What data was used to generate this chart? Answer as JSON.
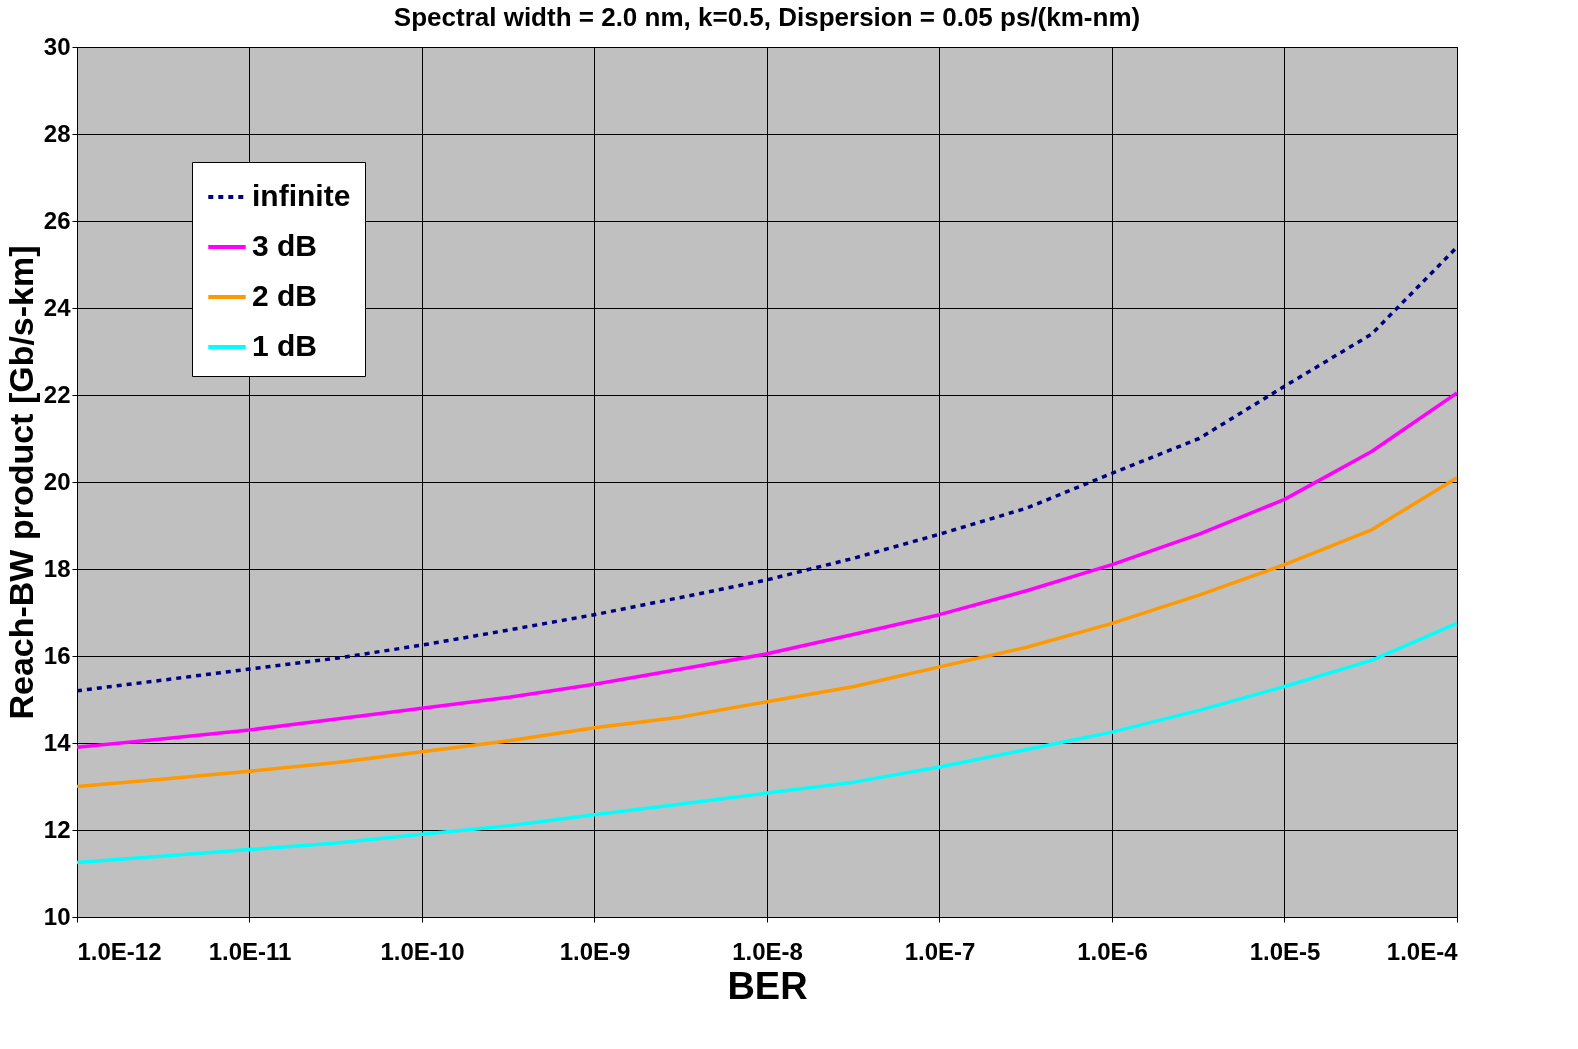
{
  "chart_data": {
    "type": "line",
    "title": "Spectral width = 2.0 nm, k=0.5, Dispersion = 0.05 ps/(km-nm)",
    "xlabel": "BER",
    "ylabel": "Reach-BW product  [Gb/s-km]",
    "x": [
      1e-12,
      3.2e-12,
      1e-11,
      3.2e-11,
      1e-10,
      3.2e-10,
      1e-09,
      3.2e-09,
      1e-08,
      3.2e-08,
      1e-07,
      3.2e-07,
      1e-06,
      3.2e-06,
      1e-05,
      3.2e-05,
      0.0001
    ],
    "series": [
      {
        "name": "infinite",
        "color": "#000080",
        "line_style": "dotted",
        "values": [
          15.2,
          15.45,
          15.7,
          15.95,
          16.25,
          16.6,
          16.95,
          17.35,
          17.75,
          18.25,
          18.8,
          19.4,
          20.2,
          21.0,
          22.2,
          23.4,
          25.4
        ]
      },
      {
        "name": "3 dB",
        "color": "#ff00ff",
        "line_style": "solid",
        "values": [
          13.9,
          14.1,
          14.3,
          14.55,
          14.8,
          15.05,
          15.35,
          15.7,
          16.05,
          16.5,
          16.95,
          17.5,
          18.1,
          18.8,
          19.6,
          20.7,
          22.05
        ]
      },
      {
        "name": "2 dB",
        "color": "#ff9900",
        "line_style": "solid",
        "values": [
          13.0,
          13.17,
          13.35,
          13.55,
          13.8,
          14.05,
          14.35,
          14.6,
          14.95,
          15.3,
          15.75,
          16.2,
          16.75,
          17.4,
          18.1,
          18.9,
          20.1
        ]
      },
      {
        "name": "1 dB",
        "color": "#00ffff",
        "line_style": "solid",
        "values": [
          11.25,
          11.4,
          11.55,
          11.7,
          11.9,
          12.1,
          12.35,
          12.6,
          12.85,
          13.1,
          13.45,
          13.85,
          14.25,
          14.75,
          15.3,
          15.9,
          16.75
        ]
      }
    ],
    "log": "x",
    "xlim": [
      1e-12,
      0.0001
    ],
    "xticks": [
      {
        "value": 1e-12,
        "label": "1.0E-12"
      },
      {
        "value": 1e-11,
        "label": "1.0E-11"
      },
      {
        "value": 1e-10,
        "label": "1.0E-10"
      },
      {
        "value": 1e-09,
        "label": "1.0E-9"
      },
      {
        "value": 1e-08,
        "label": "1.0E-8"
      },
      {
        "value": 1e-07,
        "label": "1.0E-7"
      },
      {
        "value": 1e-06,
        "label": "1.0E-6"
      },
      {
        "value": 1e-05,
        "label": "1.0E-5"
      },
      {
        "value": 0.0001,
        "label": "1.0E-4"
      }
    ],
    "ylim": [
      10,
      30
    ],
    "yticks": [
      10,
      12,
      14,
      16,
      18,
      20,
      22,
      24,
      26,
      28,
      30
    ],
    "grid": true,
    "legend": "top left"
  }
}
